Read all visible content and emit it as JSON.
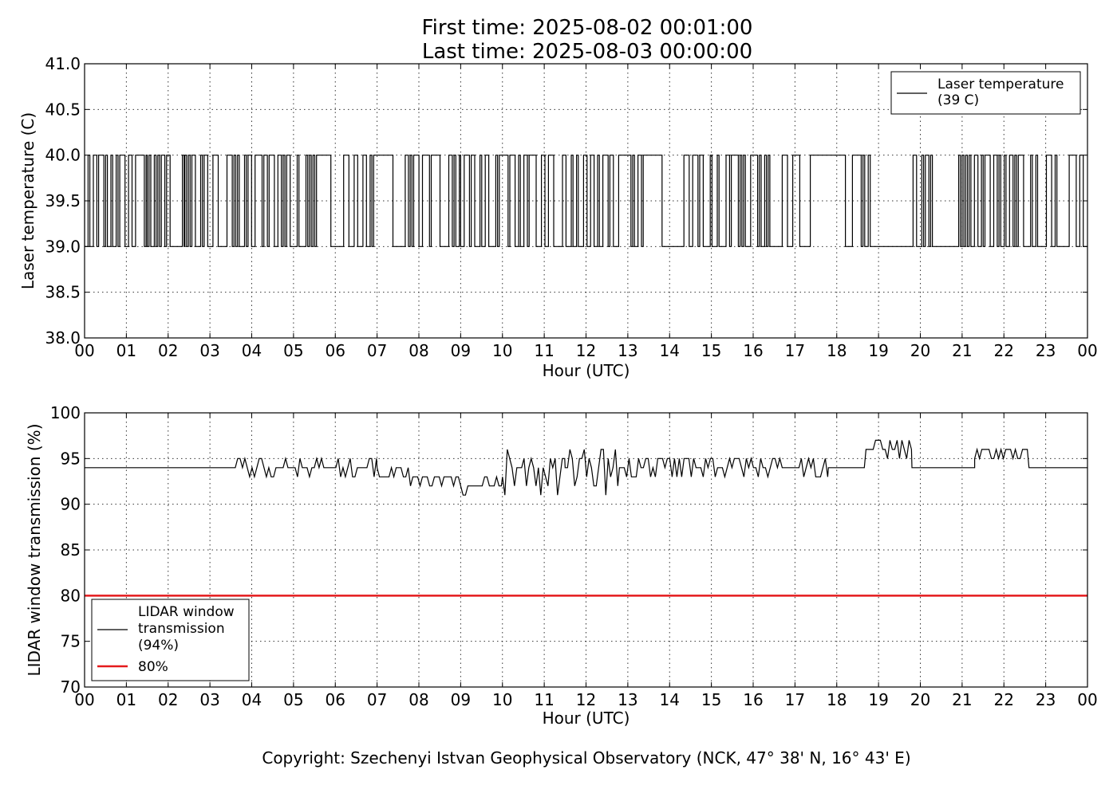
{
  "title_line1": "First time: 2025-08-02 00:01:00",
  "title_line2": "Last time: 2025-08-03 00:00:00",
  "copyright": "Copyright: Szechenyi Istvan Geophysical Observatory (NCK, 47° 38' N, 16° 43' E)",
  "colors": {
    "series": "#000000",
    "threshold": "#e41a1c"
  },
  "chart_data": [
    {
      "type": "line",
      "xlabel": "Hour (UTC)",
      "ylabel": "Laser temperature (C)",
      "xlim": [
        0,
        24
      ],
      "ylim": [
        38.0,
        41.0
      ],
      "x_ticks": [
        0,
        1,
        2,
        3,
        4,
        5,
        6,
        7,
        8,
        9,
        10,
        11,
        12,
        13,
        14,
        15,
        16,
        17,
        18,
        19,
        20,
        21,
        22,
        23,
        24
      ],
      "x_tick_labels": [
        "00",
        "01",
        "02",
        "03",
        "04",
        "05",
        "06",
        "07",
        "08",
        "09",
        "10",
        "11",
        "12",
        "13",
        "14",
        "15",
        "16",
        "17",
        "18",
        "19",
        "20",
        "21",
        "22",
        "23",
        "00"
      ],
      "y_ticks": [
        38.0,
        38.5,
        39.0,
        39.5,
        40.0,
        40.5,
        41.0
      ],
      "y_tick_labels": [
        "38.0",
        "38.5",
        "39.0",
        "39.5",
        "40.0",
        "40.5",
        "41.0"
      ],
      "grid": true,
      "legend_position": "top-right",
      "series": [
        {
          "name": "Laser temperature\n(39 C)",
          "levels": [
            39.0,
            40.0
          ],
          "segments": [
            {
              "x": [
                0.0,
                0.8
              ],
              "density": 0.5
            },
            {
              "x": [
                0.8,
                1.5
              ],
              "density": 0.35
            },
            {
              "x": [
                1.5,
                2.4
              ],
              "density": 0.5
            },
            {
              "x": [
                2.4,
                5.6
              ],
              "density": 0.55
            },
            {
              "x": [
                5.6,
                6.2
              ],
              "density": 0.08
            },
            {
              "x": [
                6.2,
                6.75
              ],
              "density": 0.2
            },
            {
              "x": [
                6.75,
                7.75
              ],
              "density": 0.15
            },
            {
              "x": [
                7.75,
                9.0
              ],
              "density": 0.6
            },
            {
              "x": [
                9.0,
                13.4
              ],
              "density": 0.5
            },
            {
              "x": [
                13.4,
                14.3
              ],
              "density": 0.06
            },
            {
              "x": [
                14.3,
                16.4
              ],
              "density": 0.55
            },
            {
              "x": [
                16.4,
                18.8
              ],
              "density": 0.15
            },
            {
              "x": [
                18.8,
                19.7
              ],
              "density": 0.0
            },
            {
              "x": [
                19.7,
                21.0
              ],
              "density": 0.3
            },
            {
              "x": [
                21.0,
                24.0
              ],
              "density": 0.5
            }
          ]
        }
      ]
    },
    {
      "type": "line",
      "xlabel": "Hour (UTC)",
      "ylabel": "LIDAR window transmission (%)",
      "xlim": [
        0,
        24
      ],
      "ylim": [
        70,
        100
      ],
      "x_ticks": [
        0,
        1,
        2,
        3,
        4,
        5,
        6,
        7,
        8,
        9,
        10,
        11,
        12,
        13,
        14,
        15,
        16,
        17,
        18,
        19,
        20,
        21,
        22,
        23,
        24
      ],
      "x_tick_labels": [
        "00",
        "01",
        "02",
        "03",
        "04",
        "05",
        "06",
        "07",
        "08",
        "09",
        "10",
        "11",
        "12",
        "13",
        "14",
        "15",
        "16",
        "17",
        "18",
        "19",
        "20",
        "21",
        "22",
        "23",
        "00"
      ],
      "y_ticks": [
        70,
        75,
        80,
        85,
        90,
        95,
        100
      ],
      "y_tick_labels": [
        "70",
        "75",
        "80",
        "85",
        "90",
        "95",
        "100"
      ],
      "grid": true,
      "legend_position": "bottom-left",
      "series": [
        {
          "name": "LIDAR window\ntransmission\n(94%)",
          "segments": [
            {
              "x": [
                0.0,
                3.55
              ],
              "base": 94,
              "noise": 0
            },
            {
              "x": [
                3.55,
                7.0
              ],
              "base": 94,
              "noise": 1
            },
            {
              "x": [
                7.0,
                7.8
              ],
              "base": 93.5,
              "noise": 1
            },
            {
              "x": [
                7.8,
                9.0
              ],
              "base": 92.5,
              "noise": 1
            },
            {
              "x": [
                9.0,
                10.0
              ],
              "base": 92,
              "noise": 1
            },
            {
              "x": [
                10.0,
                11.5
              ],
              "base": 93,
              "noise": 3
            },
            {
              "x": [
                11.5,
                12.8
              ],
              "base": 93.5,
              "noise": 2.5
            },
            {
              "x": [
                12.8,
                17.8
              ],
              "base": 94,
              "noise": 1.5
            },
            {
              "x": [
                17.8,
                18.7
              ],
              "base": 94,
              "noise": 0.5
            },
            {
              "x": [
                18.7,
                19.1
              ],
              "base": 96.5,
              "noise": 1
            },
            {
              "x": [
                19.1,
                19.8
              ],
              "base": 96,
              "noise": 1
            },
            {
              "x": [
                19.8,
                21.3
              ],
              "base": 94,
              "noise": 0
            },
            {
              "x": [
                21.3,
                22.6
              ],
              "base": 95.5,
              "noise": 1
            },
            {
              "x": [
                22.6,
                24.0
              ],
              "base": 94,
              "noise": 0
            }
          ]
        },
        {
          "name": "80%",
          "constant": 80
        }
      ]
    }
  ]
}
